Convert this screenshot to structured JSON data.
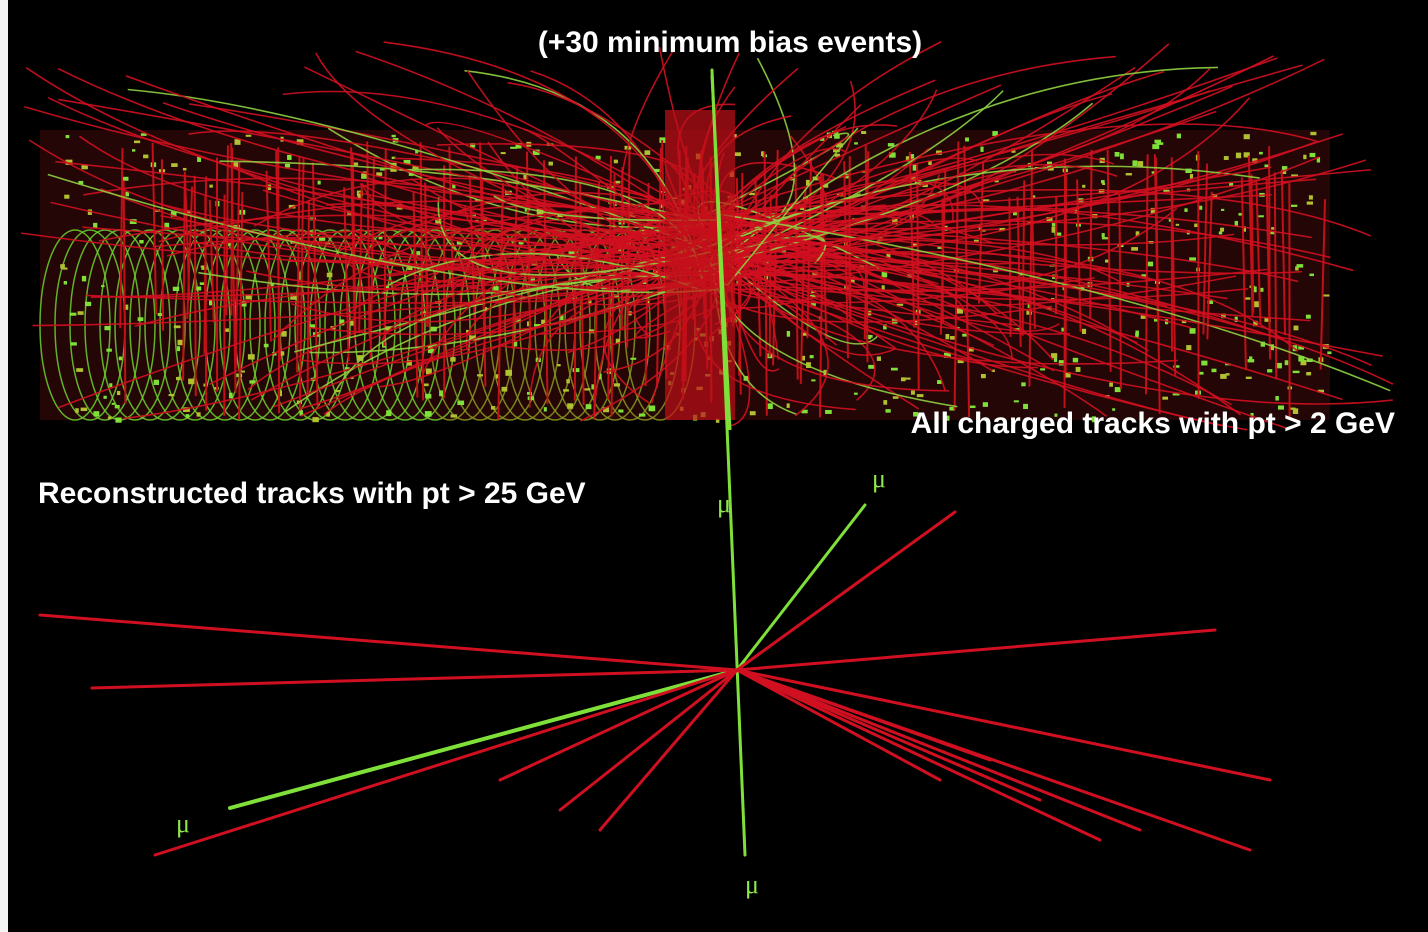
{
  "header": {
    "title": "(+30 minimum bias events)"
  },
  "top_panel": {
    "caption": "All charged tracks with pt > 2 GeV"
  },
  "bottom_panel": {
    "caption": "Reconstructed tracks with pt > 25 GeV",
    "muon_labels": [
      "μ",
      "μ",
      "μ",
      "μ"
    ]
  }
}
